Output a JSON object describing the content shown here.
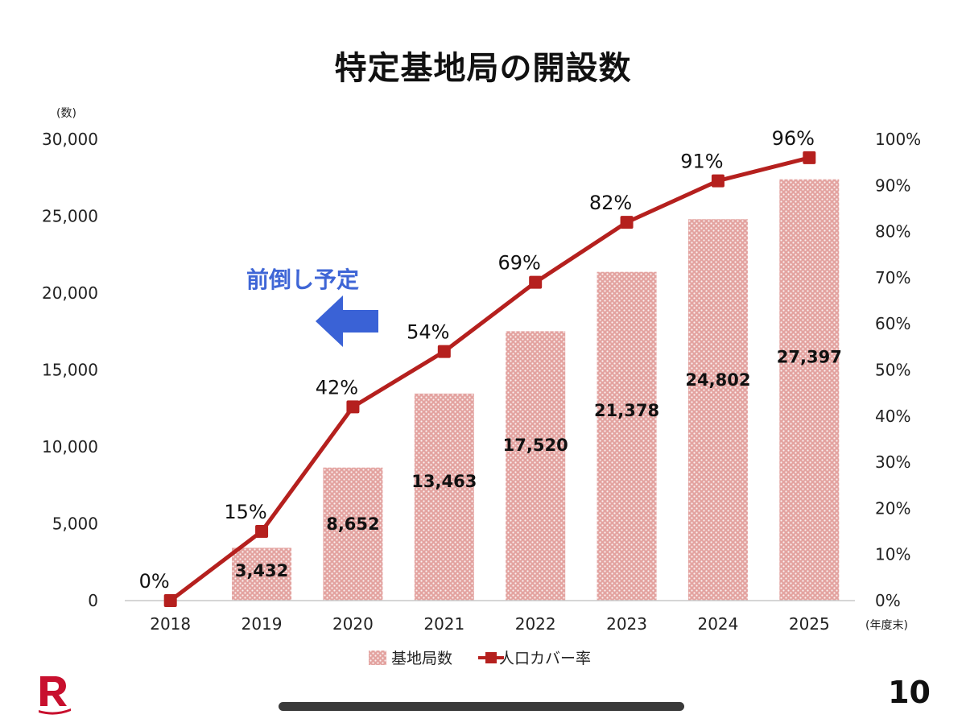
{
  "slide": {
    "title": "特定基地局の開設数",
    "annotation": "前倒し予定",
    "page_number": "10"
  },
  "chart_data": {
    "type": "bar",
    "categories": [
      "2018",
      "2019",
      "2020",
      "2021",
      "2022",
      "2023",
      "2024",
      "2025"
    ],
    "series": [
      {
        "name": "基地局数",
        "type": "bar",
        "axis": "left",
        "values": [
          0,
          3432,
          8652,
          13463,
          17520,
          21378,
          24802,
          27397
        ],
        "labels": [
          "",
          "3,432",
          "8,652",
          "13,463",
          "17,520",
          "21,378",
          "24,802",
          "27,397"
        ],
        "color": "#d9534f"
      },
      {
        "name": "人口カバー率",
        "type": "line",
        "axis": "right",
        "values": [
          0,
          15,
          42,
          54,
          69,
          82,
          91,
          96
        ],
        "labels": [
          "0%",
          "15%",
          "42%",
          "54%",
          "69%",
          "82%",
          "91%",
          "96%"
        ],
        "color": "#b5201e"
      }
    ],
    "y_left": {
      "unit_label": "(数)",
      "ylim": [
        0,
        30000
      ],
      "ticks": [
        "0",
        "5,000",
        "10,000",
        "15,000",
        "20,000",
        "25,000",
        "30,000"
      ]
    },
    "y_right": {
      "ylim": [
        0,
        100
      ],
      "ticks": [
        "0%",
        "10%",
        "20%",
        "30%",
        "40%",
        "50%",
        "60%",
        "70%",
        "80%",
        "90%",
        "100%"
      ]
    },
    "x_unit_label": "(年度末)",
    "grid": false,
    "legend_position": "bottom-center"
  }
}
